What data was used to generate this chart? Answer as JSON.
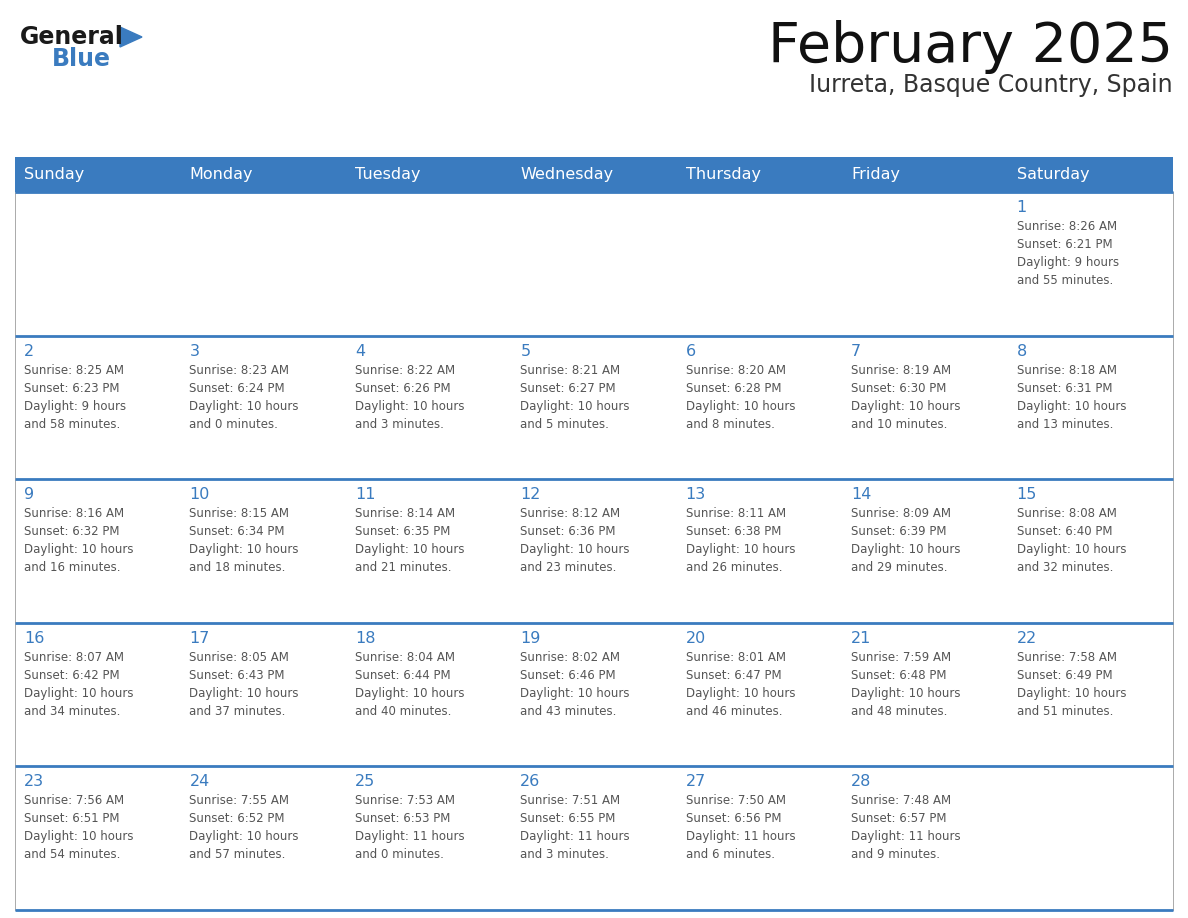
{
  "title": "February 2025",
  "subtitle": "Iurreta, Basque Country, Spain",
  "header_bg_color": "#3a7bbf",
  "header_text_color": "#ffffff",
  "cell_border_color": "#3a7bbf",
  "day_number_color": "#3a7bbf",
  "text_color": "#555555",
  "bg_color": "#ffffff",
  "days_of_week": [
    "Sunday",
    "Monday",
    "Tuesday",
    "Wednesday",
    "Thursday",
    "Friday",
    "Saturday"
  ],
  "weeks": [
    [
      {
        "day": null,
        "info": null
      },
      {
        "day": null,
        "info": null
      },
      {
        "day": null,
        "info": null
      },
      {
        "day": null,
        "info": null
      },
      {
        "day": null,
        "info": null
      },
      {
        "day": null,
        "info": null
      },
      {
        "day": 1,
        "info": "Sunrise: 8:26 AM\nSunset: 6:21 PM\nDaylight: 9 hours\nand 55 minutes."
      }
    ],
    [
      {
        "day": 2,
        "info": "Sunrise: 8:25 AM\nSunset: 6:23 PM\nDaylight: 9 hours\nand 58 minutes."
      },
      {
        "day": 3,
        "info": "Sunrise: 8:23 AM\nSunset: 6:24 PM\nDaylight: 10 hours\nand 0 minutes."
      },
      {
        "day": 4,
        "info": "Sunrise: 8:22 AM\nSunset: 6:26 PM\nDaylight: 10 hours\nand 3 minutes."
      },
      {
        "day": 5,
        "info": "Sunrise: 8:21 AM\nSunset: 6:27 PM\nDaylight: 10 hours\nand 5 minutes."
      },
      {
        "day": 6,
        "info": "Sunrise: 8:20 AM\nSunset: 6:28 PM\nDaylight: 10 hours\nand 8 minutes."
      },
      {
        "day": 7,
        "info": "Sunrise: 8:19 AM\nSunset: 6:30 PM\nDaylight: 10 hours\nand 10 minutes."
      },
      {
        "day": 8,
        "info": "Sunrise: 8:18 AM\nSunset: 6:31 PM\nDaylight: 10 hours\nand 13 minutes."
      }
    ],
    [
      {
        "day": 9,
        "info": "Sunrise: 8:16 AM\nSunset: 6:32 PM\nDaylight: 10 hours\nand 16 minutes."
      },
      {
        "day": 10,
        "info": "Sunrise: 8:15 AM\nSunset: 6:34 PM\nDaylight: 10 hours\nand 18 minutes."
      },
      {
        "day": 11,
        "info": "Sunrise: 8:14 AM\nSunset: 6:35 PM\nDaylight: 10 hours\nand 21 minutes."
      },
      {
        "day": 12,
        "info": "Sunrise: 8:12 AM\nSunset: 6:36 PM\nDaylight: 10 hours\nand 23 minutes."
      },
      {
        "day": 13,
        "info": "Sunrise: 8:11 AM\nSunset: 6:38 PM\nDaylight: 10 hours\nand 26 minutes."
      },
      {
        "day": 14,
        "info": "Sunrise: 8:09 AM\nSunset: 6:39 PM\nDaylight: 10 hours\nand 29 minutes."
      },
      {
        "day": 15,
        "info": "Sunrise: 8:08 AM\nSunset: 6:40 PM\nDaylight: 10 hours\nand 32 minutes."
      }
    ],
    [
      {
        "day": 16,
        "info": "Sunrise: 8:07 AM\nSunset: 6:42 PM\nDaylight: 10 hours\nand 34 minutes."
      },
      {
        "day": 17,
        "info": "Sunrise: 8:05 AM\nSunset: 6:43 PM\nDaylight: 10 hours\nand 37 minutes."
      },
      {
        "day": 18,
        "info": "Sunrise: 8:04 AM\nSunset: 6:44 PM\nDaylight: 10 hours\nand 40 minutes."
      },
      {
        "day": 19,
        "info": "Sunrise: 8:02 AM\nSunset: 6:46 PM\nDaylight: 10 hours\nand 43 minutes."
      },
      {
        "day": 20,
        "info": "Sunrise: 8:01 AM\nSunset: 6:47 PM\nDaylight: 10 hours\nand 46 minutes."
      },
      {
        "day": 21,
        "info": "Sunrise: 7:59 AM\nSunset: 6:48 PM\nDaylight: 10 hours\nand 48 minutes."
      },
      {
        "day": 22,
        "info": "Sunrise: 7:58 AM\nSunset: 6:49 PM\nDaylight: 10 hours\nand 51 minutes."
      }
    ],
    [
      {
        "day": 23,
        "info": "Sunrise: 7:56 AM\nSunset: 6:51 PM\nDaylight: 10 hours\nand 54 minutes."
      },
      {
        "day": 24,
        "info": "Sunrise: 7:55 AM\nSunset: 6:52 PM\nDaylight: 10 hours\nand 57 minutes."
      },
      {
        "day": 25,
        "info": "Sunrise: 7:53 AM\nSunset: 6:53 PM\nDaylight: 11 hours\nand 0 minutes."
      },
      {
        "day": 26,
        "info": "Sunrise: 7:51 AM\nSunset: 6:55 PM\nDaylight: 11 hours\nand 3 minutes."
      },
      {
        "day": 27,
        "info": "Sunrise: 7:50 AM\nSunset: 6:56 PM\nDaylight: 11 hours\nand 6 minutes."
      },
      {
        "day": 28,
        "info": "Sunrise: 7:48 AM\nSunset: 6:57 PM\nDaylight: 11 hours\nand 9 minutes."
      },
      {
        "day": null,
        "info": null
      }
    ]
  ],
  "logo_general_color": "#1a1a1a",
  "logo_blue_color": "#3a7bbf",
  "logo_triangle_color": "#3a7bbf"
}
